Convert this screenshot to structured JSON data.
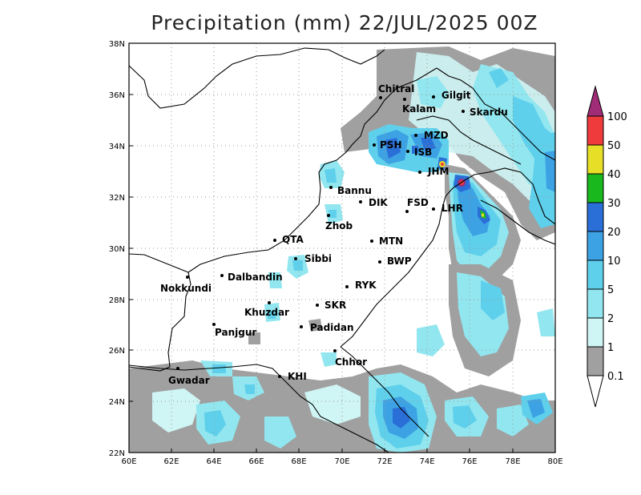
{
  "title": "Precipitation (mm) 22/JUL/2025 00Z",
  "y_axis_ticks": [
    "38N",
    "36N",
    "34N",
    "32N",
    "30N",
    "28N",
    "26N",
    "24N",
    "22N"
  ],
  "x_axis_ticks": [
    "60E",
    "62E",
    "64E",
    "66E",
    "68E",
    "70E",
    "72E",
    "74E",
    "76E",
    "78E",
    "80E"
  ],
  "colorbar": {
    "labels": [
      "0.1",
      "1",
      "2",
      "5",
      "10",
      "20",
      "30",
      "40",
      "50",
      "100"
    ],
    "colors": [
      "#a0a0a0",
      "#d0f5f5",
      "#92e6ef",
      "#5fd0ec",
      "#3da2e3",
      "#2a6fd8",
      "#19b81c",
      "#e7df27",
      "#ef3b3b",
      "#a02c77"
    ]
  },
  "cities": [
    {
      "name": "Chitral"
    },
    {
      "name": "Gilgit"
    },
    {
      "name": "Kalam"
    },
    {
      "name": "Skardu"
    },
    {
      "name": "MZD"
    },
    {
      "name": "PSH"
    },
    {
      "name": "ISB"
    },
    {
      "name": "JHM"
    },
    {
      "name": "Bannu"
    },
    {
      "name": "DIK"
    },
    {
      "name": "FSD"
    },
    {
      "name": "LHR"
    },
    {
      "name": "Zhob"
    },
    {
      "name": "QTA"
    },
    {
      "name": "MTN"
    },
    {
      "name": "Sibbi"
    },
    {
      "name": "BWP"
    },
    {
      "name": "Dalbandin"
    },
    {
      "name": "Nokkundi"
    },
    {
      "name": "RYK"
    },
    {
      "name": "Khuzdar"
    },
    {
      "name": "SKR"
    },
    {
      "name": "Panjgur"
    },
    {
      "name": "Padidan"
    },
    {
      "name": "Chhor"
    },
    {
      "name": "Gwadar"
    },
    {
      "name": "KHI"
    }
  ]
}
